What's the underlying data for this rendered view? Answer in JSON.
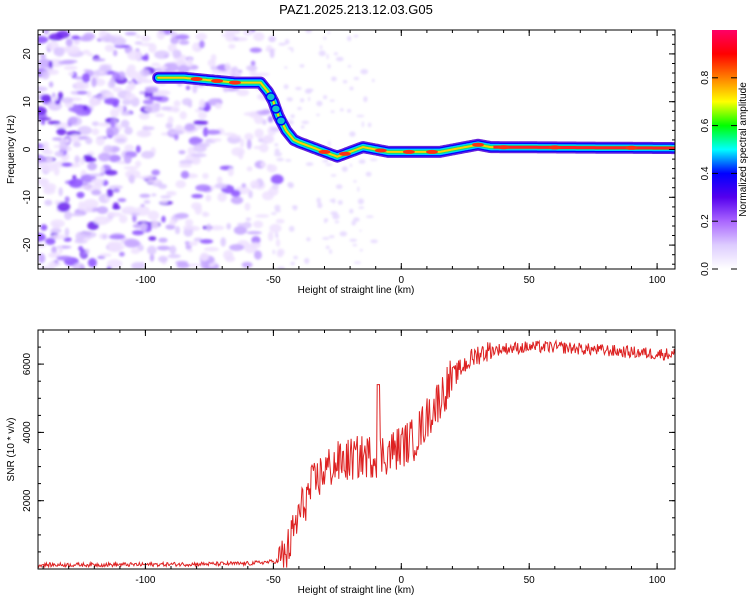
{
  "chart_data": [
    {
      "type": "heatmap",
      "title": "PAZ1.2025.213.12.03.G05",
      "xlabel": "Height of straight line (km)",
      "ylabel": "Frequency (Hz)",
      "xlim": [
        -142,
        107
      ],
      "ylim": [
        -25,
        25
      ],
      "xticks": [
        -100,
        -50,
        0,
        50,
        100
      ],
      "yticks": [
        -20,
        -10,
        0,
        10,
        20
      ],
      "colorbar": {
        "label": "Normalized spectral amplitude",
        "ticks": [
          0.0,
          0.2,
          0.4,
          0.6,
          0.8
        ],
        "range": [
          0,
          1
        ],
        "colormap": [
          "#ffffff",
          "#ddccff",
          "#aa66ff",
          "#5500ee",
          "#0000ff",
          "#00ffff",
          "#00ff00",
          "#ffff00",
          "#ff8000",
          "#ff0000",
          "#ff0066"
        ]
      },
      "ridge": {
        "x": [
          -95,
          -85,
          -75,
          -65,
          -55,
          -52,
          -50,
          -48,
          -45,
          -42,
          -40,
          -35,
          -30,
          -25,
          -20,
          -15,
          -10,
          -5,
          0,
          5,
          10,
          15,
          20,
          25,
          30,
          35,
          107
        ],
        "y": [
          15,
          15,
          14.5,
          14,
          14,
          12,
          10,
          7,
          4,
          2,
          1.5,
          0.5,
          -0.5,
          -1.5,
          -0.5,
          0.5,
          0,
          -0.5,
          -0.5,
          -0.5,
          -0.5,
          -0.5,
          0,
          0.5,
          1,
          0.5,
          0.3
        ],
        "peak_x": [
          -80,
          -72,
          -65,
          -30,
          -22,
          -8,
          3,
          12,
          30,
          40,
          60,
          90
        ]
      }
    },
    {
      "type": "line",
      "title": "",
      "xlabel": "Height of straight line (km)",
      "ylabel": "SNR (10 * v/v)",
      "xlim": [
        -142,
        107
      ],
      "ylim": [
        0,
        7000
      ],
      "xticks": [
        -100,
        -50,
        0,
        50,
        100
      ],
      "yticks": [
        2000,
        4000,
        6000
      ],
      "color": "#dd2222",
      "envelope": {
        "x": [
          -142,
          -100,
          -60,
          -48,
          -45,
          -40,
          -35,
          -30,
          -25,
          -20,
          -15,
          -10,
          -5,
          0,
          5,
          10,
          15,
          20,
          25,
          30,
          35,
          40,
          50,
          60,
          70,
          80,
          90,
          100,
          107
        ],
        "y": [
          120,
          130,
          160,
          230,
          400,
          1600,
          2400,
          2900,
          3100,
          3200,
          3300,
          3300,
          3400,
          3600,
          3800,
          4400,
          5000,
          5600,
          6000,
          6300,
          6400,
          6450,
          6500,
          6500,
          6450,
          6400,
          6350,
          6300,
          6300
        ]
      }
    }
  ]
}
